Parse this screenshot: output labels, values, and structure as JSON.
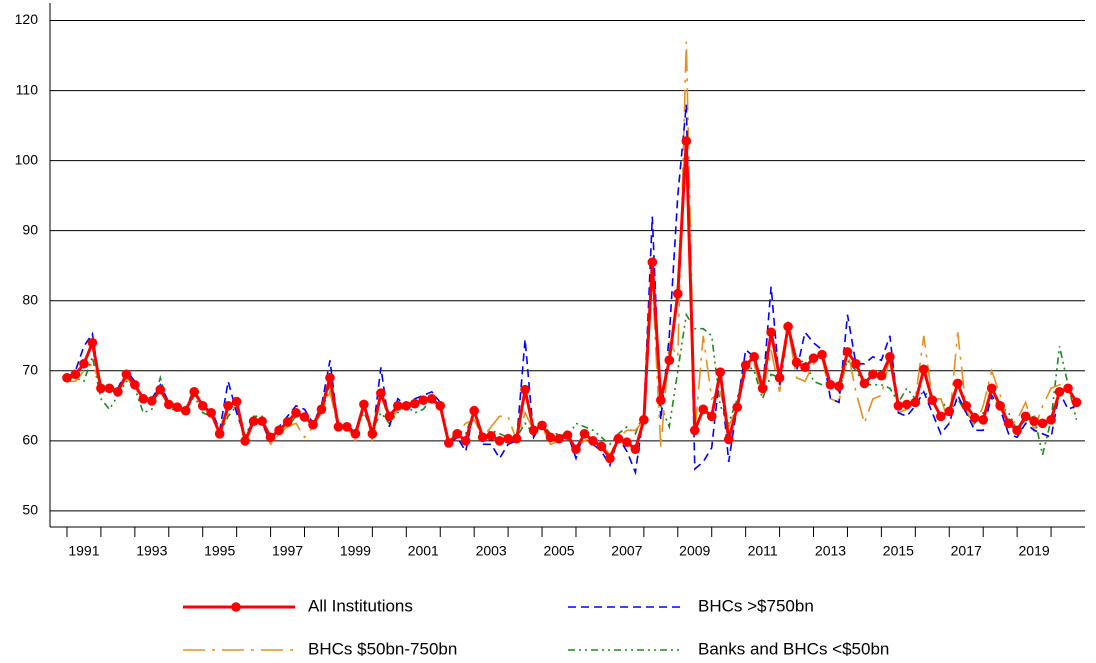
{
  "chart_data": {
    "type": "line",
    "x": [
      1991,
      1991.25,
      1991.5,
      1991.75,
      1992,
      1992.25,
      1992.5,
      1992.75,
      1993,
      1993.25,
      1993.5,
      1993.75,
      1994,
      1994.25,
      1994.5,
      1994.75,
      1995,
      1995.25,
      1995.5,
      1995.75,
      1996,
      1996.25,
      1996.5,
      1996.75,
      1997,
      1997.25,
      1997.5,
      1997.75,
      1998,
      1998.25,
      1998.5,
      1998.75,
      1999,
      1999.25,
      1999.5,
      1999.75,
      2000,
      2000.25,
      2000.5,
      2000.75,
      2001,
      2001.25,
      2001.5,
      2001.75,
      2002,
      2002.25,
      2002.5,
      2002.75,
      2003,
      2003.25,
      2003.5,
      2003.75,
      2004,
      2004.25,
      2004.5,
      2004.75,
      2005,
      2005.25,
      2005.5,
      2005.75,
      2006,
      2006.25,
      2006.5,
      2006.75,
      2007,
      2007.25,
      2007.5,
      2007.75,
      2008,
      2008.25,
      2008.5,
      2008.75,
      2009,
      2009.25,
      2009.5,
      2009.75,
      2010,
      2010.25,
      2010.5,
      2010.75,
      2011,
      2011.25,
      2011.5,
      2011.75,
      2012,
      2012.25,
      2012.5,
      2012.75,
      2013,
      2013.25,
      2013.5,
      2013.75,
      2014,
      2014.25,
      2014.5,
      2014.75,
      2015,
      2015.25,
      2015.5,
      2015.75,
      2016,
      2016.25,
      2016.5,
      2016.75,
      2017,
      2017.25,
      2017.5,
      2017.75,
      2018,
      2018.25,
      2018.5,
      2018.75,
      2019,
      2019.25,
      2019.5,
      2019.75,
      2020,
      2020.25,
      2020.5,
      2020.75
    ],
    "series": [
      {
        "name": "All Institutions",
        "color": "#ff0000",
        "values": [
          69,
          69.5,
          71,
          74,
          67.5,
          67.5,
          67,
          69.5,
          68,
          66,
          65.7,
          67.3,
          65.2,
          64.8,
          64.3,
          67,
          65,
          64,
          61,
          65,
          65.6,
          60,
          62.8,
          62.8,
          60.5,
          61.5,
          62.7,
          64,
          63.4,
          62.3,
          64.5,
          69,
          62,
          62,
          61,
          65.2,
          61,
          66.8,
          63.5,
          65,
          65,
          65.3,
          65.8,
          66,
          65,
          59.7,
          61,
          60,
          64.3,
          60.5,
          60.7,
          60,
          60.3,
          60.3,
          67.3,
          61.5,
          62.2,
          60.5,
          60.3,
          60.8,
          58.8,
          61,
          60,
          59.2,
          57.5,
          60.3,
          59.8,
          58.8,
          63,
          85.5,
          65.8,
          71.5,
          81,
          102.8,
          61.5,
          64.5,
          63.5,
          69.8,
          60.2,
          64.8,
          70.8,
          72,
          67.5,
          75.5,
          69,
          76.3,
          71.2,
          70.5,
          71.8,
          72.3,
          68,
          67.8,
          72.7,
          71,
          68.2,
          69.5,
          69.3,
          72,
          65,
          65.2,
          65.5,
          70.2,
          65.8,
          63.5,
          64.2,
          68.2,
          65,
          63.3,
          63,
          67.5,
          65,
          62.5,
          61.5,
          63.5,
          62.8,
          62.5,
          63,
          67,
          67.5,
          65.5
        ]
      },
      {
        "name": "BHCs >$750bn",
        "color": "#0000ff",
        "values": [
          69,
          70,
          73.5,
          75.3,
          67,
          68,
          67.5,
          70,
          68.5,
          65.5,
          66,
          68,
          65.5,
          65,
          64.5,
          67.5,
          64.5,
          64.5,
          61.5,
          68.5,
          64,
          60.5,
          63,
          62.5,
          60,
          62,
          63.5,
          65,
          64.5,
          62.5,
          65,
          71.5,
          61.5,
          62.5,
          61,
          65.5,
          60.5,
          70.5,
          62,
          66,
          65,
          66,
          66.5,
          67,
          65.5,
          59.5,
          60.5,
          58.5,
          64.5,
          59.5,
          59.5,
          57.5,
          59.5,
          60,
          74.5,
          60.5,
          62.5,
          60,
          60.5,
          61,
          57.5,
          61.5,
          59.5,
          58.5,
          56.5,
          60.5,
          58.5,
          55.5,
          64,
          92,
          63,
          75,
          95,
          108,
          56,
          57,
          59,
          70,
          57,
          65,
          73,
          72,
          67,
          82,
          68,
          77,
          70,
          75.5,
          74,
          73,
          66,
          65.5,
          78,
          71,
          71,
          72,
          71.5,
          75,
          64,
          63.5,
          65,
          67,
          64,
          61,
          62.5,
          66.5,
          64,
          61.5,
          61.5,
          66.5,
          64.5,
          61,
          60.5,
          62.5,
          61.5,
          61,
          60.5,
          67,
          64.5,
          65
        ]
      },
      {
        "name": "BHCs $50bn-750bn",
        "color": "#e8901e",
        "values": [
          68.5,
          68.5,
          70,
          71,
          68,
          67.5,
          67,
          69,
          67.5,
          66,
          66,
          67,
          65,
          64.5,
          64,
          67,
          65,
          63.5,
          61,
          64,
          65,
          59.5,
          62.5,
          62.5,
          59.5,
          61,
          62,
          62.5,
          60.5,
          62,
          64,
          67,
          61.5,
          62,
          60,
          65.5,
          60,
          67,
          62.5,
          64.5,
          65,
          65,
          65.5,
          66,
          64.5,
          60,
          61,
          62.5,
          63,
          60.5,
          62,
          63.5,
          63.5,
          60,
          64,
          61.5,
          62,
          59.5,
          60,
          60.5,
          59,
          60,
          60.5,
          59.5,
          58,
          60.5,
          61.5,
          61.5,
          63,
          83,
          59,
          74,
          72,
          117,
          61,
          75,
          66,
          67,
          62,
          65,
          70,
          71,
          66.5,
          73,
          67,
          76,
          69,
          68.5,
          71,
          72,
          66,
          65.5,
          73,
          67,
          62.5,
          66,
          66.5,
          72,
          64,
          64.5,
          66,
          75,
          66,
          66,
          62.5,
          75.5,
          64.5,
          62,
          65,
          70,
          66.5,
          62,
          63,
          65.5,
          61.5,
          65,
          67.5,
          68,
          68,
          65.5
        ]
      },
      {
        "name": "Banks and BHCs <$50bn",
        "color": "#1a8c1a",
        "values": [
          69,
          69,
          68.5,
          72,
          66,
          64.5,
          66.5,
          68.5,
          67.5,
          64,
          64.5,
          69,
          64.5,
          64.5,
          64,
          66.5,
          64,
          63.5,
          61,
          63.5,
          65,
          60.5,
          63.5,
          63.5,
          60,
          62,
          62,
          63.5,
          63.5,
          62,
          64,
          68,
          61.5,
          62,
          61.5,
          64,
          61.5,
          64,
          62.5,
          64,
          65,
          64,
          64.5,
          66,
          65,
          60,
          61.5,
          61,
          64.5,
          60.5,
          61.5,
          61,
          60.5,
          60.5,
          62.5,
          61,
          62.5,
          61,
          61,
          60.5,
          62.5,
          62,
          61.5,
          60.5,
          59.5,
          61,
          62,
          61,
          64,
          86,
          65,
          62,
          70,
          78,
          76,
          76,
          75,
          65,
          62.5,
          66,
          71,
          70,
          66,
          69.5,
          69,
          76.5,
          71,
          71.5,
          68.5,
          68,
          68.5,
          67,
          71.5,
          70,
          68,
          68,
          68,
          67.5,
          65.5,
          67.5,
          66,
          67,
          66,
          66,
          64,
          66,
          64,
          62.5,
          64,
          66,
          65,
          64,
          61.5,
          63,
          63.5,
          58,
          63,
          73.5,
          68,
          63
        ]
      }
    ],
    "xlim": [
      1990.5,
      2021
    ],
    "xticks": [
      {
        "value": 1991.5,
        "label": "1991"
      },
      {
        "value": 1993.5,
        "label": "1993"
      },
      {
        "value": 1995.5,
        "label": "1995"
      },
      {
        "value": 1997.5,
        "label": "1997"
      },
      {
        "value": 1999.5,
        "label": "1999"
      },
      {
        "value": 2001.5,
        "label": "2001"
      },
      {
        "value": 2003.5,
        "label": "2003"
      },
      {
        "value": 2005.5,
        "label": "2005"
      },
      {
        "value": 2007.5,
        "label": "2007"
      },
      {
        "value": 2009.5,
        "label": "2009"
      },
      {
        "value": 2011.5,
        "label": "2011"
      },
      {
        "value": 2013.5,
        "label": "2013"
      },
      {
        "value": 2015.5,
        "label": "2015"
      },
      {
        "value": 2017.5,
        "label": "2017"
      },
      {
        "value": 2019.5,
        "label": "2019"
      }
    ],
    "xtick_marks": [
      1991,
      1992,
      1993,
      1994,
      1995,
      1996,
      1997,
      1998,
      1999,
      2000,
      2001,
      2002,
      2003,
      2004,
      2005,
      2006,
      2007,
      2008,
      2009,
      2010,
      2011,
      2012,
      2013,
      2014,
      2015,
      2016,
      2017,
      2018,
      2019,
      2020
    ],
    "ylim": [
      47.7,
      122.5
    ],
    "yticks": [
      50,
      60,
      70,
      80,
      90,
      100,
      110,
      120
    ],
    "grid": true,
    "legend": "bottom"
  }
}
